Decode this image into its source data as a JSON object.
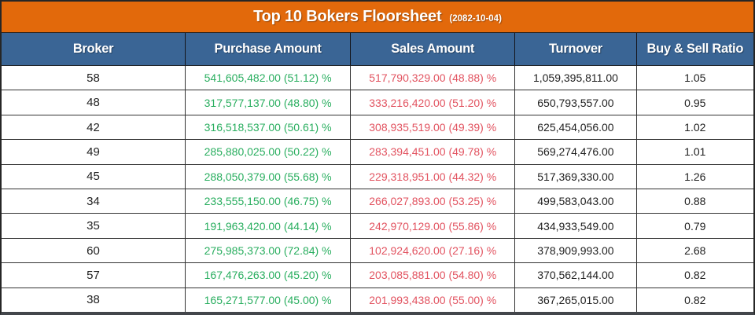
{
  "banner": {
    "title": "Top 10 Bokers Floorsheet",
    "date": "(2082-10-04)"
  },
  "columns": {
    "broker": "Broker",
    "purchase": "Purchase Amount",
    "sales": "Sales Amount",
    "turnover": "Turnover",
    "ratio": "Buy & Sell Ratio"
  },
  "table": {
    "rows": [
      {
        "broker": "58",
        "purchase": "541,605,482.00 (51.12) %",
        "sales": "517,790,329.00 (48.88) %",
        "turnover": "1,059,395,811.00",
        "ratio": "1.05"
      },
      {
        "broker": "48",
        "purchase": "317,577,137.00 (48.80) %",
        "sales": "333,216,420.00 (51.20) %",
        "turnover": "650,793,557.00",
        "ratio": "0.95"
      },
      {
        "broker": "42",
        "purchase": "316,518,537.00 (50.61) %",
        "sales": "308,935,519.00 (49.39) %",
        "turnover": "625,454,056.00",
        "ratio": "1.02"
      },
      {
        "broker": "49",
        "purchase": "285,880,025.00 (50.22) %",
        "sales": "283,394,451.00 (49.78) %",
        "turnover": "569,274,476.00",
        "ratio": "1.01"
      },
      {
        "broker": "45",
        "purchase": "288,050,379.00 (55.68) %",
        "sales": "229,318,951.00 (44.32) %",
        "turnover": "517,369,330.00",
        "ratio": "1.26"
      },
      {
        "broker": "34",
        "purchase": "233,555,150.00 (46.75) %",
        "sales": "266,027,893.00 (53.25) %",
        "turnover": "499,583,043.00",
        "ratio": "0.88"
      },
      {
        "broker": "35",
        "purchase": "191,963,420.00 (44.14) %",
        "sales": "242,970,129.00 (55.86) %",
        "turnover": "434,933,549.00",
        "ratio": "0.79"
      },
      {
        "broker": "60",
        "purchase": "275,985,373.00 (72.84) %",
        "sales": "102,924,620.00 (27.16) %",
        "turnover": "378,909,993.00",
        "ratio": "2.68"
      },
      {
        "broker": "57",
        "purchase": "167,476,263.00 (45.20) %",
        "sales": "203,085,881.00 (54.80) %",
        "turnover": "370,562,144.00",
        "ratio": "0.82"
      },
      {
        "broker": "38",
        "purchase": "165,271,577.00 (45.00) %",
        "sales": "201,993,438.00 (55.00) %",
        "turnover": "367,265,015.00",
        "ratio": "0.82"
      }
    ]
  },
  "colors": {
    "banner_bg": "#E2690B",
    "header_bg": "#3A6595",
    "purchase_text": "#29AE5F",
    "sales_text": "#E25360",
    "body_text": "#262626",
    "grid_line": "#333333"
  },
  "chart_data": {
    "type": "table",
    "title": "Top 10 Bokers Floorsheet",
    "date": "2082-10-04",
    "columns": [
      "Broker",
      "Purchase Amount",
      "Sales Amount",
      "Turnover",
      "Buy & Sell Ratio"
    ],
    "rows": [
      {
        "broker": 58,
        "purchase_amount": 541605482.0,
        "purchase_pct": 51.12,
        "sales_amount": 517790329.0,
        "sales_pct": 48.88,
        "turnover": 1059395811.0,
        "buy_sell_ratio": 1.05
      },
      {
        "broker": 48,
        "purchase_amount": 317577137.0,
        "purchase_pct": 48.8,
        "sales_amount": 333216420.0,
        "sales_pct": 51.2,
        "turnover": 650793557.0,
        "buy_sell_ratio": 0.95
      },
      {
        "broker": 42,
        "purchase_amount": 316518537.0,
        "purchase_pct": 50.61,
        "sales_amount": 308935519.0,
        "sales_pct": 49.39,
        "turnover": 625454056.0,
        "buy_sell_ratio": 1.02
      },
      {
        "broker": 49,
        "purchase_amount": 285880025.0,
        "purchase_pct": 50.22,
        "sales_amount": 283394451.0,
        "sales_pct": 49.78,
        "turnover": 569274476.0,
        "buy_sell_ratio": 1.01
      },
      {
        "broker": 45,
        "purchase_amount": 288050379.0,
        "purchase_pct": 55.68,
        "sales_amount": 229318951.0,
        "sales_pct": 44.32,
        "turnover": 517369330.0,
        "buy_sell_ratio": 1.26
      },
      {
        "broker": 34,
        "purchase_amount": 233555150.0,
        "purchase_pct": 46.75,
        "sales_amount": 266027893.0,
        "sales_pct": 53.25,
        "turnover": 499583043.0,
        "buy_sell_ratio": 0.88
      },
      {
        "broker": 35,
        "purchase_amount": 191963420.0,
        "purchase_pct": 44.14,
        "sales_amount": 242970129.0,
        "sales_pct": 55.86,
        "turnover": 434933549.0,
        "buy_sell_ratio": 0.79
      },
      {
        "broker": 60,
        "purchase_amount": 275985373.0,
        "purchase_pct": 72.84,
        "sales_amount": 102924620.0,
        "sales_pct": 27.16,
        "turnover": 378909993.0,
        "buy_sell_ratio": 2.68
      },
      {
        "broker": 57,
        "purchase_amount": 167476263.0,
        "purchase_pct": 45.2,
        "sales_amount": 203085881.0,
        "sales_pct": 54.8,
        "turnover": 370562144.0,
        "buy_sell_ratio": 0.82
      },
      {
        "broker": 38,
        "purchase_amount": 165271577.0,
        "purchase_pct": 45.0,
        "sales_amount": 201993438.0,
        "sales_pct": 55.0,
        "turnover": 367265015.0,
        "buy_sell_ratio": 0.82
      }
    ]
  }
}
